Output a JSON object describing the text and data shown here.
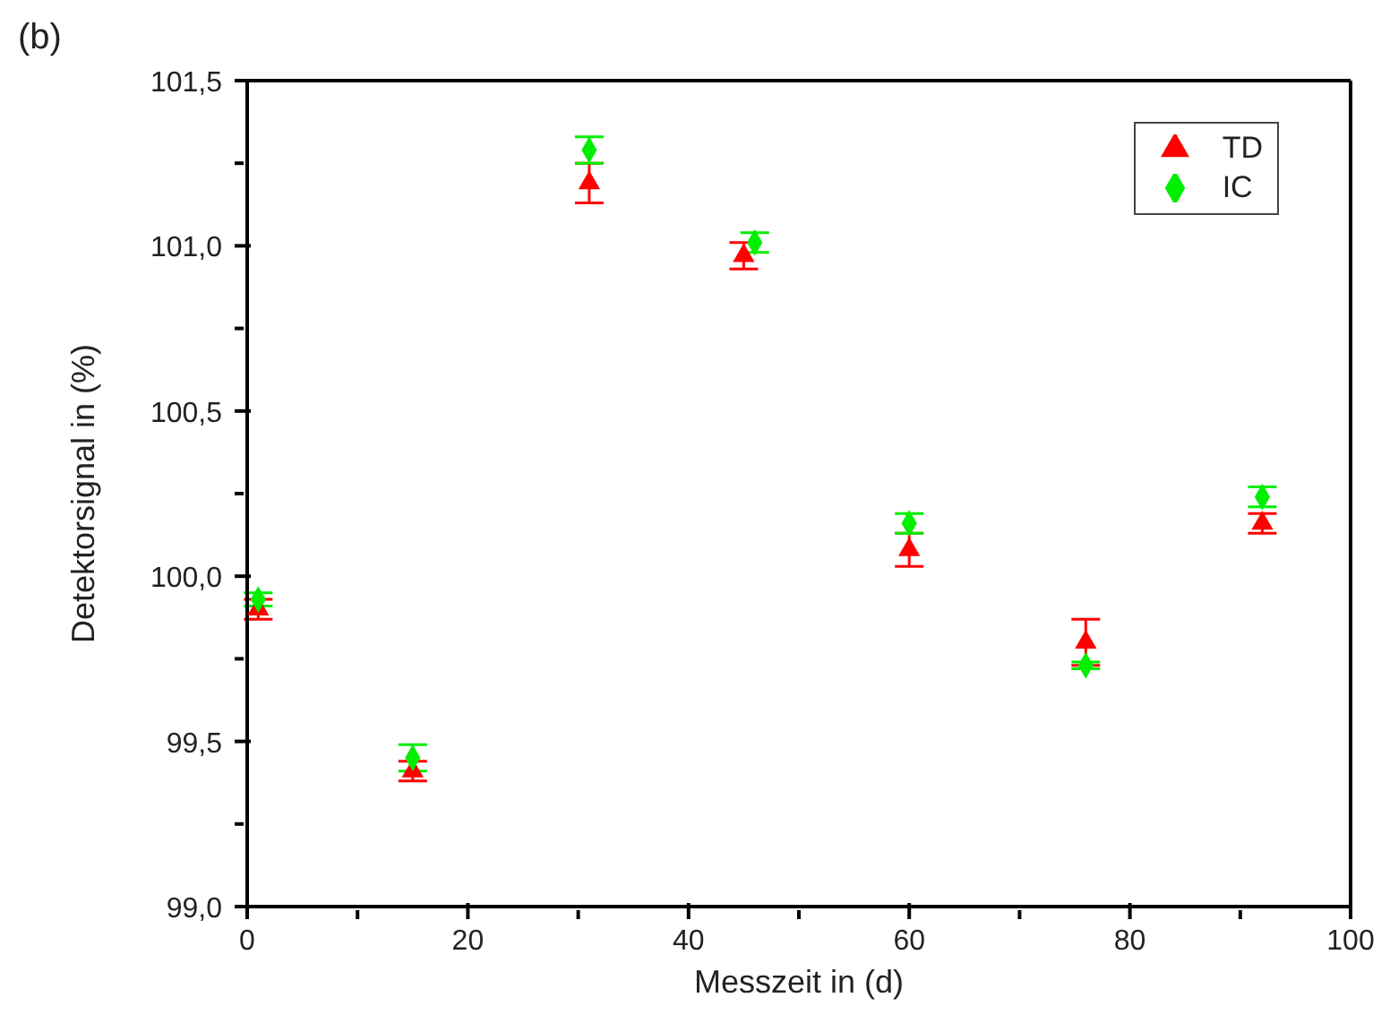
{
  "chart_data": {
    "type": "scatter",
    "title": "(b)",
    "xlabel": "Messzeit in (d)",
    "ylabel": "Detektorsignal in (%)",
    "x": [
      1,
      15,
      31,
      45,
      60,
      76,
      92
    ],
    "series": [
      {
        "name": "TD",
        "color": "#ff0000",
        "marker": "triangle",
        "values": [
          99.9,
          99.41,
          101.19,
          100.97,
          100.08,
          99.8,
          100.16
        ],
        "errors": [
          0.03,
          0.03,
          0.06,
          0.04,
          0.05,
          0.07,
          0.03
        ]
      },
      {
        "name": "IC",
        "color": "#00ee00",
        "marker": "diamond",
        "x": [
          1,
          15,
          31,
          46,
          60,
          76,
          92
        ],
        "values": [
          99.93,
          99.45,
          101.29,
          101.01,
          100.16,
          99.73,
          100.24
        ],
        "errors": [
          0.02,
          0.04,
          0.04,
          0.03,
          0.03,
          0.01,
          0.03
        ]
      }
    ],
    "xlim": [
      0,
      100
    ],
    "xticks": [
      0,
      {
        "value": 10,
        "label": null
      },
      20,
      {
        "value": 30,
        "label": null
      },
      40,
      {
        "value": 50,
        "label": null
      },
      60,
      {
        "value": 70,
        "label": null
      },
      80,
      {
        "value": 90,
        "label": null
      },
      100
    ],
    "ylim": [
      99,
      101.5
    ],
    "yticks": [
      {
        "value": 99,
        "label": "99,0"
      },
      {
        "value": 99.25,
        "label": null
      },
      {
        "value": 99.5,
        "label": "99,5"
      },
      {
        "value": 99.75,
        "label": null
      },
      {
        "value": 100,
        "label": "100,0"
      },
      {
        "value": 100.25,
        "label": null
      },
      {
        "value": 100.5,
        "label": "100,5"
      },
      {
        "value": 100.75,
        "label": null
      },
      {
        "value": 101,
        "label": "101,0"
      },
      {
        "value": 101.25,
        "label": null
      },
      {
        "value": 101.5,
        "label": "101,5"
      }
    ],
    "legend": "top right"
  }
}
